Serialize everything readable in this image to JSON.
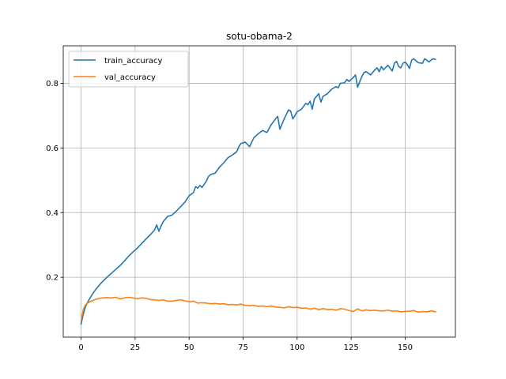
{
  "chart_data": {
    "type": "line",
    "title": "sotu-obama-2",
    "xlabel": "",
    "ylabel": "",
    "xlim": [
      -8.25,
      173.25
    ],
    "ylim": [
      0.0146,
      0.9162
    ],
    "xticks": [
      0,
      25,
      50,
      75,
      100,
      125,
      150
    ],
    "yticks": [
      0.2,
      0.4,
      0.6,
      0.8
    ],
    "xtick_labels": [
      "0",
      "25",
      "50",
      "75",
      "100",
      "125",
      "150"
    ],
    "ytick_labels": [
      "0.2",
      "0.4",
      "0.6",
      "0.8"
    ],
    "grid": true,
    "legend_position": "top-left",
    "series": [
      {
        "name": "train_accuracy",
        "color": "#1f77b4",
        "points": [
          [
            0,
            0.055
          ],
          [
            1,
            0.085
          ],
          [
            2,
            0.108
          ],
          [
            3,
            0.122
          ],
          [
            4,
            0.134
          ],
          [
            5,
            0.145
          ],
          [
            6,
            0.155
          ],
          [
            7,
            0.164
          ],
          [
            8,
            0.172
          ],
          [
            9,
            0.18
          ],
          [
            10,
            0.187
          ],
          [
            12,
            0.2
          ],
          [
            14,
            0.212
          ],
          [
            16,
            0.224
          ],
          [
            18,
            0.236
          ],
          [
            20,
            0.25
          ],
          [
            22,
            0.265
          ],
          [
            24,
            0.278
          ],
          [
            26,
            0.29
          ],
          [
            28,
            0.304
          ],
          [
            30,
            0.318
          ],
          [
            32,
            0.331
          ],
          [
            34,
            0.346
          ],
          [
            35,
            0.362
          ],
          [
            36,
            0.342
          ],
          [
            37,
            0.358
          ],
          [
            38,
            0.372
          ],
          [
            40,
            0.388
          ],
          [
            42,
            0.392
          ],
          [
            44,
            0.404
          ],
          [
            46,
            0.418
          ],
          [
            48,
            0.432
          ],
          [
            50,
            0.452
          ],
          [
            52,
            0.462
          ],
          [
            53,
            0.48
          ],
          [
            54,
            0.476
          ],
          [
            55,
            0.484
          ],
          [
            56,
            0.478
          ],
          [
            58,
            0.498
          ],
          [
            59,
            0.512
          ],
          [
            60,
            0.518
          ],
          [
            62,
            0.522
          ],
          [
            64,
            0.54
          ],
          [
            66,
            0.554
          ],
          [
            68,
            0.57
          ],
          [
            70,
            0.578
          ],
          [
            72,
            0.588
          ],
          [
            73,
            0.604
          ],
          [
            74,
            0.614
          ],
          [
            76,
            0.618
          ],
          [
            78,
            0.604
          ],
          [
            80,
            0.632
          ],
          [
            82,
            0.644
          ],
          [
            84,
            0.654
          ],
          [
            86,
            0.648
          ],
          [
            88,
            0.672
          ],
          [
            90,
            0.69
          ],
          [
            91,
            0.698
          ],
          [
            92,
            0.658
          ],
          [
            94,
            0.69
          ],
          [
            96,
            0.718
          ],
          [
            97,
            0.714
          ],
          [
            98,
            0.69
          ],
          [
            100,
            0.712
          ],
          [
            102,
            0.72
          ],
          [
            104,
            0.738
          ],
          [
            105,
            0.734
          ],
          [
            106,
            0.745
          ],
          [
            107,
            0.72
          ],
          [
            108,
            0.752
          ],
          [
            110,
            0.768
          ],
          [
            111,
            0.742
          ],
          [
            112,
            0.76
          ],
          [
            114,
            0.768
          ],
          [
            116,
            0.782
          ],
          [
            118,
            0.79
          ],
          [
            119,
            0.786
          ],
          [
            120,
            0.8
          ],
          [
            122,
            0.802
          ],
          [
            123,
            0.812
          ],
          [
            124,
            0.806
          ],
          [
            126,
            0.818
          ],
          [
            127,
            0.826
          ],
          [
            128,
            0.788
          ],
          [
            130,
            0.822
          ],
          [
            131,
            0.834
          ],
          [
            132,
            0.836
          ],
          [
            134,
            0.826
          ],
          [
            136,
            0.842
          ],
          [
            137,
            0.848
          ],
          [
            138,
            0.836
          ],
          [
            139,
            0.852
          ],
          [
            140,
            0.842
          ],
          [
            142,
            0.856
          ],
          [
            144,
            0.838
          ],
          [
            145,
            0.862
          ],
          [
            146,
            0.868
          ],
          [
            147,
            0.852
          ],
          [
            148,
            0.848
          ],
          [
            149,
            0.862
          ],
          [
            150,
            0.866
          ],
          [
            151,
            0.858
          ],
          [
            152,
            0.846
          ],
          [
            153,
            0.872
          ],
          [
            154,
            0.876
          ],
          [
            156,
            0.864
          ],
          [
            158,
            0.862
          ],
          [
            159,
            0.876
          ],
          [
            160,
            0.872
          ],
          [
            161,
            0.866
          ],
          [
            162,
            0.872
          ],
          [
            163,
            0.876
          ],
          [
            164,
            0.874
          ]
        ]
      },
      {
        "name": "val_accuracy",
        "color": "#ff7f0e",
        "points": [
          [
            0,
            0.065
          ],
          [
            1,
            0.1
          ],
          [
            2,
            0.114
          ],
          [
            3,
            0.12
          ],
          [
            4,
            0.124
          ],
          [
            5,
            0.127
          ],
          [
            6,
            0.13
          ],
          [
            8,
            0.134
          ],
          [
            10,
            0.136
          ],
          [
            12,
            0.137
          ],
          [
            14,
            0.136
          ],
          [
            16,
            0.138
          ],
          [
            18,
            0.133
          ],
          [
            20,
            0.136
          ],
          [
            22,
            0.138
          ],
          [
            24,
            0.136
          ],
          [
            26,
            0.134
          ],
          [
            28,
            0.136
          ],
          [
            30,
            0.135
          ],
          [
            32,
            0.131
          ],
          [
            34,
            0.13
          ],
          [
            36,
            0.128
          ],
          [
            38,
            0.13
          ],
          [
            40,
            0.126
          ],
          [
            42,
            0.126
          ],
          [
            44,
            0.128
          ],
          [
            46,
            0.13
          ],
          [
            48,
            0.127
          ],
          [
            50,
            0.124
          ],
          [
            52,
            0.126
          ],
          [
            54,
            0.12
          ],
          [
            56,
            0.121
          ],
          [
            58,
            0.12
          ],
          [
            60,
            0.118
          ],
          [
            62,
            0.119
          ],
          [
            64,
            0.117
          ],
          [
            66,
            0.118
          ],
          [
            68,
            0.115
          ],
          [
            70,
            0.116
          ],
          [
            72,
            0.114
          ],
          [
            74,
            0.117
          ],
          [
            76,
            0.113
          ],
          [
            78,
            0.112
          ],
          [
            80,
            0.113
          ],
          [
            82,
            0.11
          ],
          [
            84,
            0.111
          ],
          [
            86,
            0.109
          ],
          [
            88,
            0.111
          ],
          [
            90,
            0.108
          ],
          [
            92,
            0.107
          ],
          [
            94,
            0.105
          ],
          [
            96,
            0.109
          ],
          [
            98,
            0.106
          ],
          [
            100,
            0.107
          ],
          [
            102,
            0.104
          ],
          [
            104,
            0.105
          ],
          [
            106,
            0.101
          ],
          [
            108,
            0.104
          ],
          [
            110,
            0.1
          ],
          [
            112,
            0.103
          ],
          [
            114,
            0.1
          ],
          [
            116,
            0.101
          ],
          [
            118,
            0.098
          ],
          [
            120,
            0.103
          ],
          [
            122,
            0.101
          ],
          [
            124,
            0.097
          ],
          [
            126,
            0.094
          ],
          [
            128,
            0.102
          ],
          [
            130,
            0.096
          ],
          [
            132,
            0.099
          ],
          [
            134,
            0.097
          ],
          [
            136,
            0.098
          ],
          [
            138,
            0.096
          ],
          [
            140,
            0.096
          ],
          [
            142,
            0.098
          ],
          [
            144,
            0.095
          ],
          [
            146,
            0.096
          ],
          [
            148,
            0.093
          ],
          [
            150,
            0.094
          ],
          [
            152,
            0.095
          ],
          [
            154,
            0.097
          ],
          [
            156,
            0.092
          ],
          [
            158,
            0.094
          ],
          [
            160,
            0.093
          ],
          [
            162,
            0.096
          ],
          [
            164,
            0.093
          ]
        ]
      }
    ]
  }
}
